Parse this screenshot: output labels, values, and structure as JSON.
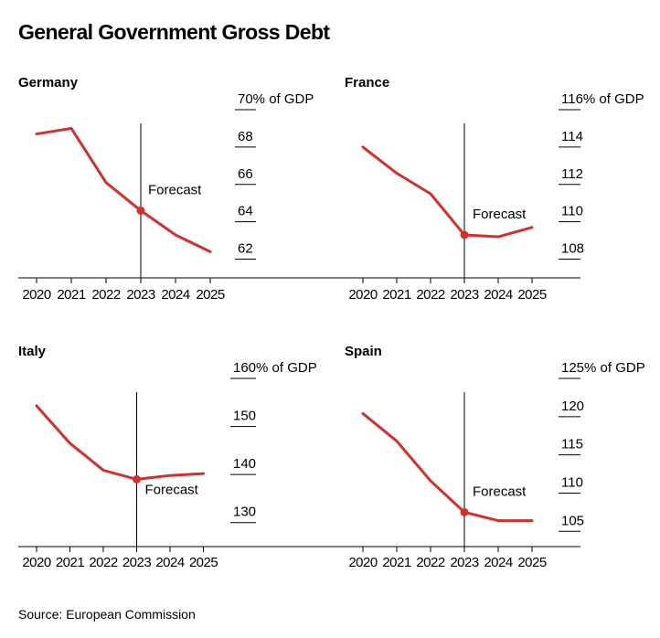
{
  "title": "General Government Gross Debt",
  "source": "Source: European Commission",
  "colors": {
    "line": "#d2302b",
    "axis": "#000000"
  },
  "chart_data": [
    {
      "type": "line",
      "title": "Germany",
      "categories": [
        "2020",
        "2021",
        "2022",
        "2023",
        "2024",
        "2025"
      ],
      "values": [
        68.7,
        69.0,
        66.1,
        64.6,
        63.3,
        62.4
      ],
      "forecast_from": "2023",
      "forecast_label": "Forecast",
      "ylim": [
        61,
        70
      ],
      "yticks": [
        {
          "value": 70,
          "label": "70% of GDP"
        },
        {
          "value": 68,
          "label": "68"
        },
        {
          "value": 66,
          "label": "66"
        },
        {
          "value": 64,
          "label": "64"
        },
        {
          "value": 62,
          "label": "62"
        }
      ]
    },
    {
      "type": "line",
      "title": "France",
      "categories": [
        "2020",
        "2021",
        "2022",
        "2023",
        "2024",
        "2025"
      ],
      "values": [
        114.0,
        112.6,
        111.5,
        109.3,
        109.2,
        109.7
      ],
      "forecast_from": "2023",
      "forecast_label": "Forecast",
      "ylim": [
        107,
        116
      ],
      "yticks": [
        {
          "value": 116,
          "label": "116% of GDP"
        },
        {
          "value": 114,
          "label": "114"
        },
        {
          "value": 112,
          "label": "112"
        },
        {
          "value": 110,
          "label": "110"
        },
        {
          "value": 108,
          "label": "108"
        }
      ]
    },
    {
      "type": "line",
      "title": "Italy",
      "categories": [
        "2020",
        "2021",
        "2022",
        "2023",
        "2024",
        "2025"
      ],
      "values": [
        154.3,
        146.5,
        140.9,
        139.0,
        139.8,
        140.2
      ],
      "forecast_from": "2023",
      "forecast_label": "Forecast",
      "ylim": [
        125,
        160
      ],
      "yticks": [
        {
          "value": 160,
          "label": "160% of GDP"
        },
        {
          "value": 150,
          "label": "150"
        },
        {
          "value": 140,
          "label": "140"
        },
        {
          "value": 130,
          "label": "130"
        }
      ]
    },
    {
      "type": "line",
      "title": "Spain",
      "categories": [
        "2020",
        "2021",
        "2022",
        "2023",
        "2024",
        "2025"
      ],
      "values": [
        120.4,
        116.8,
        111.6,
        107.5,
        106.4,
        106.4
      ],
      "forecast_from": "2023",
      "forecast_label": "Forecast",
      "ylim": [
        103,
        125
      ],
      "yticks": [
        {
          "value": 125,
          "label": "125% of GDP"
        },
        {
          "value": 120,
          "label": "120"
        },
        {
          "value": 115,
          "label": "115"
        },
        {
          "value": 110,
          "label": "110"
        },
        {
          "value": 105,
          "label": "105"
        }
      ]
    }
  ]
}
